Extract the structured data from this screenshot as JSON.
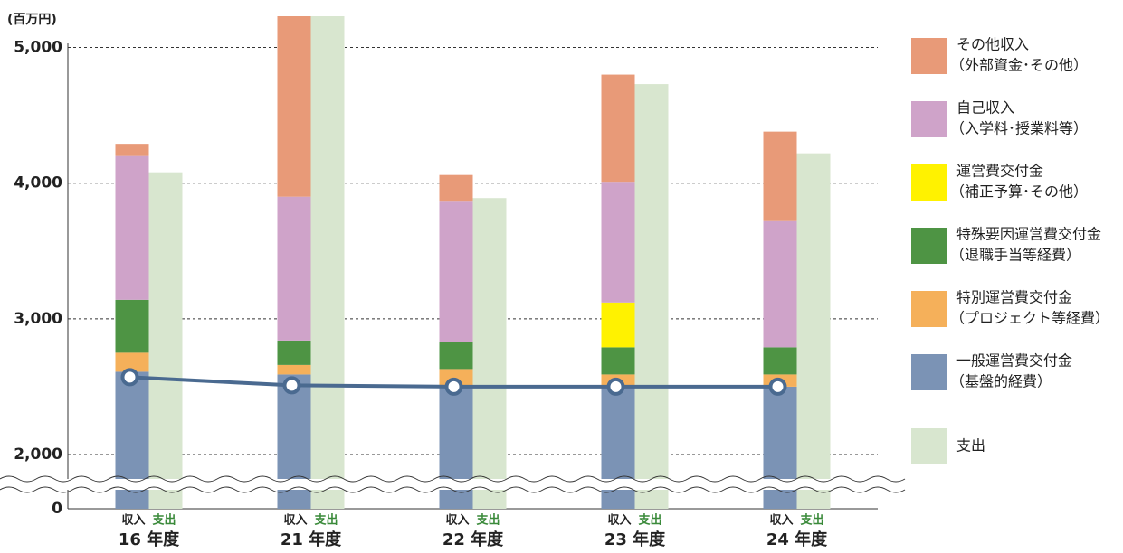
{
  "chart_data": {
    "type": "stacked_bar_line",
    "y_unit": "(百万円)",
    "categories": [
      "16 年度",
      "21 年度",
      "22 年度",
      "23 年度",
      "24 年度"
    ],
    "bar_labels": [
      "収入",
      "支出"
    ],
    "series": [
      {
        "name": "一般運営費交付金",
        "subname": "（基盤的経費）",
        "color": "#7b93b5",
        "values": [
          2610,
          2590,
          2500,
          2500,
          2500
        ]
      },
      {
        "name": "特別運営費交付金",
        "subname": "（プロジェクト等経費）",
        "color": "#f5b05a",
        "values": [
          140,
          70,
          130,
          90,
          90
        ]
      },
      {
        "name": "特殊要因運営費交付金",
        "subname": "（退職手当等経費）",
        "color": "#4e9444",
        "values": [
          390,
          180,
          200,
          200,
          200
        ]
      },
      {
        "name": "運営費交付金",
        "subname": "（補正予算･その他）",
        "color": "#fff200",
        "values": [
          0,
          0,
          0,
          330,
          0
        ]
      },
      {
        "name": "自己収入",
        "subname": "（入学料･授業料等）",
        "color": "#cfa3c9",
        "values": [
          1060,
          1060,
          1040,
          890,
          930
        ]
      },
      {
        "name": "その他収入",
        "subname": "（外部資金･その他）",
        "color": "#e89a78",
        "values": [
          90,
          1330,
          190,
          790,
          660
        ]
      }
    ],
    "spending": {
      "name": "支出",
      "color": "#d8e6cf",
      "values": [
        4080,
        5230,
        3890,
        4730,
        4220
      ]
    },
    "line": {
      "color": "#4a6a90",
      "values": [
        2570,
        2510,
        2500,
        2500,
        2500
      ]
    },
    "ylim": [
      0,
      5230
    ],
    "yticks": [
      0,
      {
        "value": 2000,
        "label": "2,000"
      },
      {
        "value": 3000,
        "label": "3,000"
      },
      {
        "value": 4000,
        "label": "4,000"
      },
      {
        "value": 5000,
        "label": "5,000"
      }
    ],
    "axis_break": true,
    "grid": true
  }
}
